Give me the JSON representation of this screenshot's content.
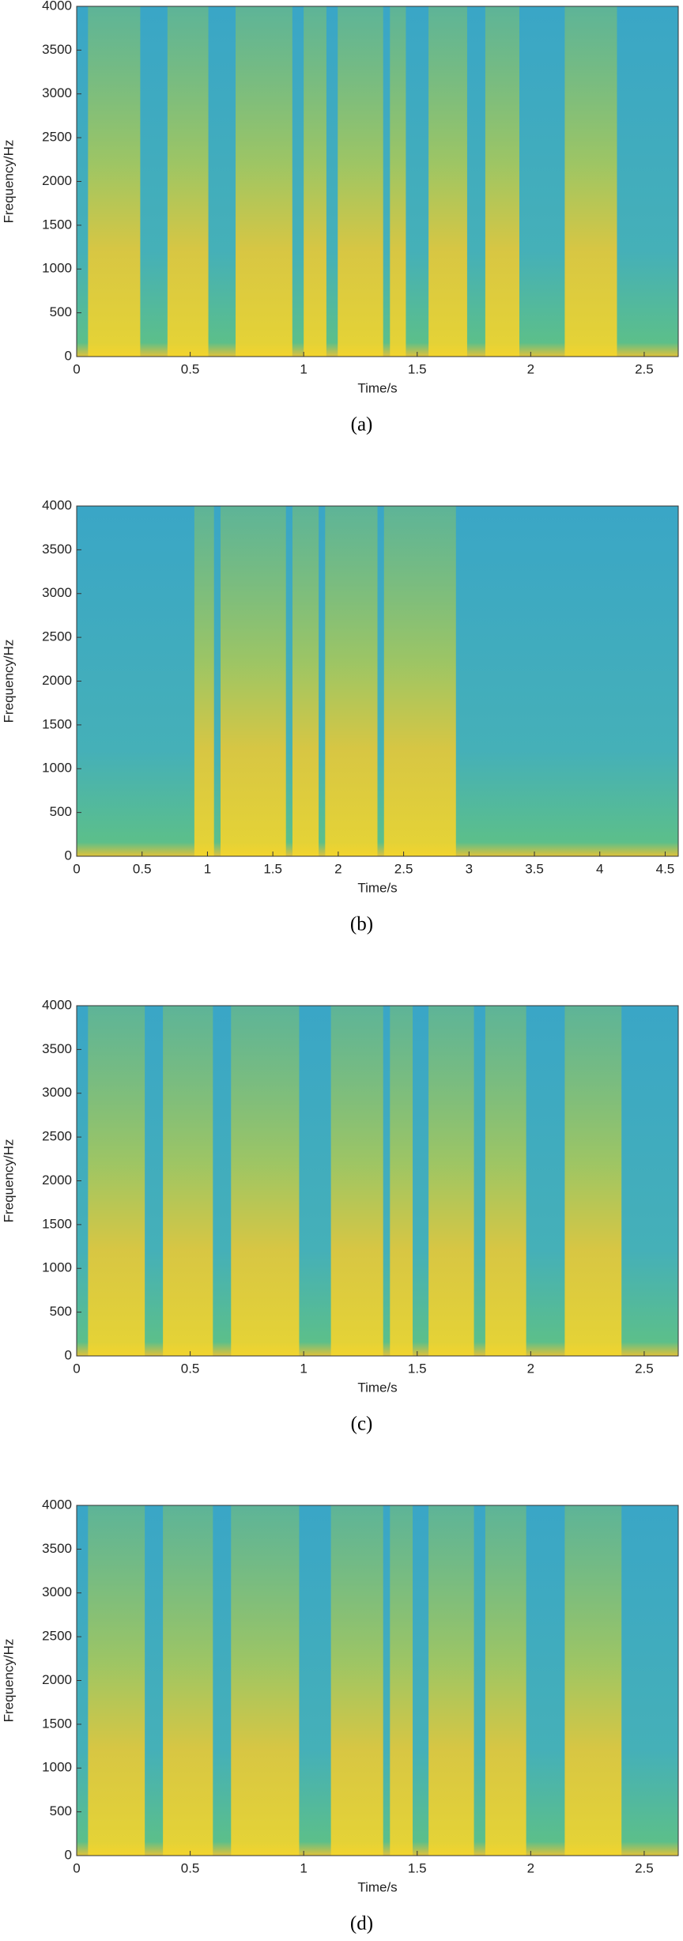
{
  "chart_data": [
    {
      "type": "spectrogram",
      "xlabel": "Time/s",
      "ylabel": "Frequency/Hz",
      "caption": "(a)",
      "xlim": [
        0,
        2.65
      ],
      "ylim": [
        0,
        4000
      ],
      "xticks": [
        0,
        0.5,
        1,
        1.5,
        2,
        2.5
      ],
      "yticks": [
        0,
        500,
        1000,
        1500,
        2000,
        2500,
        3000,
        3500,
        4000
      ],
      "segments": [
        [
          0.05,
          0.28
        ],
        [
          0.4,
          0.58
        ],
        [
          0.7,
          0.95
        ],
        [
          1.0,
          1.1
        ],
        [
          1.15,
          1.35
        ],
        [
          1.38,
          1.45
        ],
        [
          1.55,
          1.72
        ],
        [
          1.8,
          1.95
        ],
        [
          2.15,
          2.38
        ]
      ]
    },
    {
      "type": "spectrogram",
      "xlabel": "Time/s",
      "ylabel": "Frequency/Hz",
      "caption": "(b)",
      "xlim": [
        0,
        4.6
      ],
      "ylim": [
        0,
        4000
      ],
      "xticks": [
        0,
        0.5,
        1,
        1.5,
        2,
        2.5,
        3,
        3.5,
        4,
        4.5
      ],
      "yticks": [
        0,
        500,
        1000,
        1500,
        2000,
        2500,
        3000,
        3500,
        4000
      ],
      "segments": [
        [
          0.9,
          1.05
        ],
        [
          1.1,
          1.6
        ],
        [
          1.65,
          1.85
        ],
        [
          1.9,
          2.3
        ],
        [
          2.35,
          2.9
        ]
      ]
    },
    {
      "type": "spectrogram",
      "xlabel": "Time/s",
      "ylabel": "Frequency/Hz",
      "caption": "(c)",
      "xlim": [
        0,
        2.65
      ],
      "ylim": [
        0,
        4000
      ],
      "xticks": [
        0,
        0.5,
        1,
        1.5,
        2,
        2.5
      ],
      "yticks": [
        0,
        500,
        1000,
        1500,
        2000,
        2500,
        3000,
        3500,
        4000
      ],
      "segments": [
        [
          0.05,
          0.3
        ],
        [
          0.38,
          0.6
        ],
        [
          0.68,
          0.98
        ],
        [
          1.12,
          1.35
        ],
        [
          1.38,
          1.48
        ],
        [
          1.55,
          1.75
        ],
        [
          1.8,
          1.98
        ],
        [
          2.15,
          2.4
        ]
      ]
    },
    {
      "type": "spectrogram",
      "xlabel": "Time/s",
      "ylabel": "Frequency/Hz",
      "caption": "(d)",
      "xlim": [
        0,
        2.65
      ],
      "ylim": [
        0,
        4000
      ],
      "xticks": [
        0,
        0.5,
        1,
        1.5,
        2,
        2.5
      ],
      "yticks": [
        0,
        500,
        1000,
        1500,
        2000,
        2500,
        3000,
        3500,
        4000
      ],
      "segments": [
        [
          0.05,
          0.3
        ],
        [
          0.38,
          0.6
        ],
        [
          0.68,
          0.98
        ],
        [
          1.12,
          1.35
        ],
        [
          1.38,
          1.48
        ],
        [
          1.55,
          1.75
        ],
        [
          1.8,
          1.98
        ],
        [
          2.15,
          2.4
        ]
      ]
    }
  ]
}
